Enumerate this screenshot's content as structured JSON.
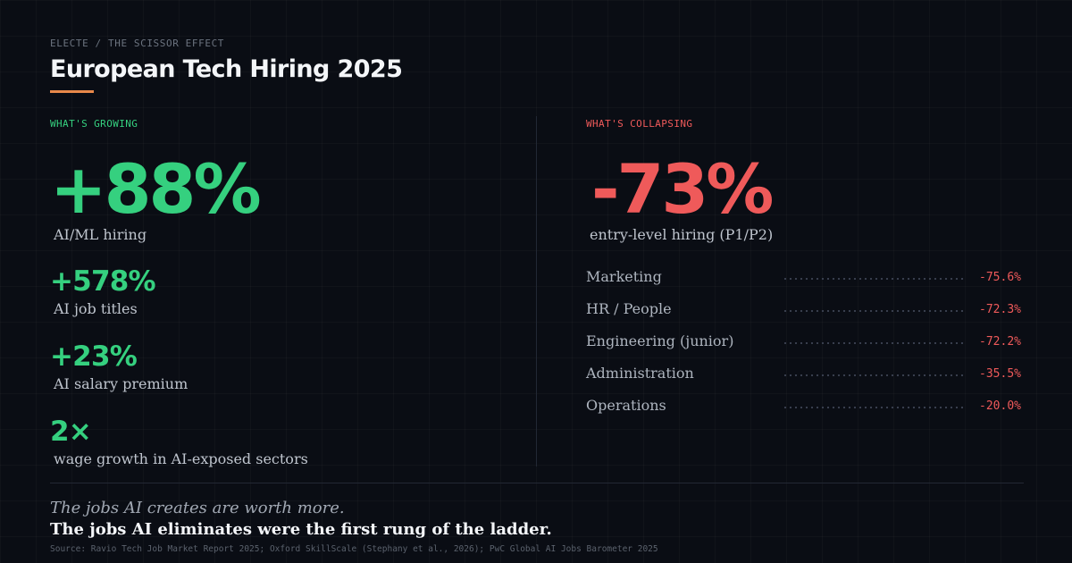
{
  "header": {
    "breadcrumb": "ELECTE / THE SCISSOR EFFECT",
    "title": "European Tech Hiring 2025"
  },
  "growing": {
    "label": "WHAT'S GROWING",
    "headline": {
      "value": "+88%",
      "caption": "AI/ML hiring"
    },
    "stats": [
      {
        "value": "+578%",
        "caption": "AI job titles"
      },
      {
        "value": "+23%",
        "caption": "AI salary premium"
      },
      {
        "value": "2×",
        "caption": "wage growth in AI-exposed sectors"
      }
    ]
  },
  "collapsing": {
    "label": "WHAT'S COLLAPSING",
    "headline": {
      "value": "-73%",
      "caption": "entry-level hiring (P1/P2)"
    },
    "rows": [
      {
        "label": "Marketing",
        "value": "-75.6%"
      },
      {
        "label": "HR / People",
        "value": "-72.3%"
      },
      {
        "label": "Engineering (junior)",
        "value": "-72.2%"
      },
      {
        "label": "Administration",
        "value": "-35.5%"
      },
      {
        "label": "Operations",
        "value": "-20.0%"
      }
    ]
  },
  "footer": {
    "tagline_1": "The jobs AI creates are worth more.",
    "tagline_2": "The jobs AI eliminates were the first rung of the ladder.",
    "source": "Source: Ravio Tech Job Market Report 2025; Oxford SkillScale (Stephany et al., 2026); PwC Global AI Jobs Barometer 2025"
  },
  "colors": {
    "background": "#0a0d14",
    "growth_green": "#35d07f",
    "decline_red": "#ef5a5a",
    "accent_orange": "#e8894a"
  }
}
